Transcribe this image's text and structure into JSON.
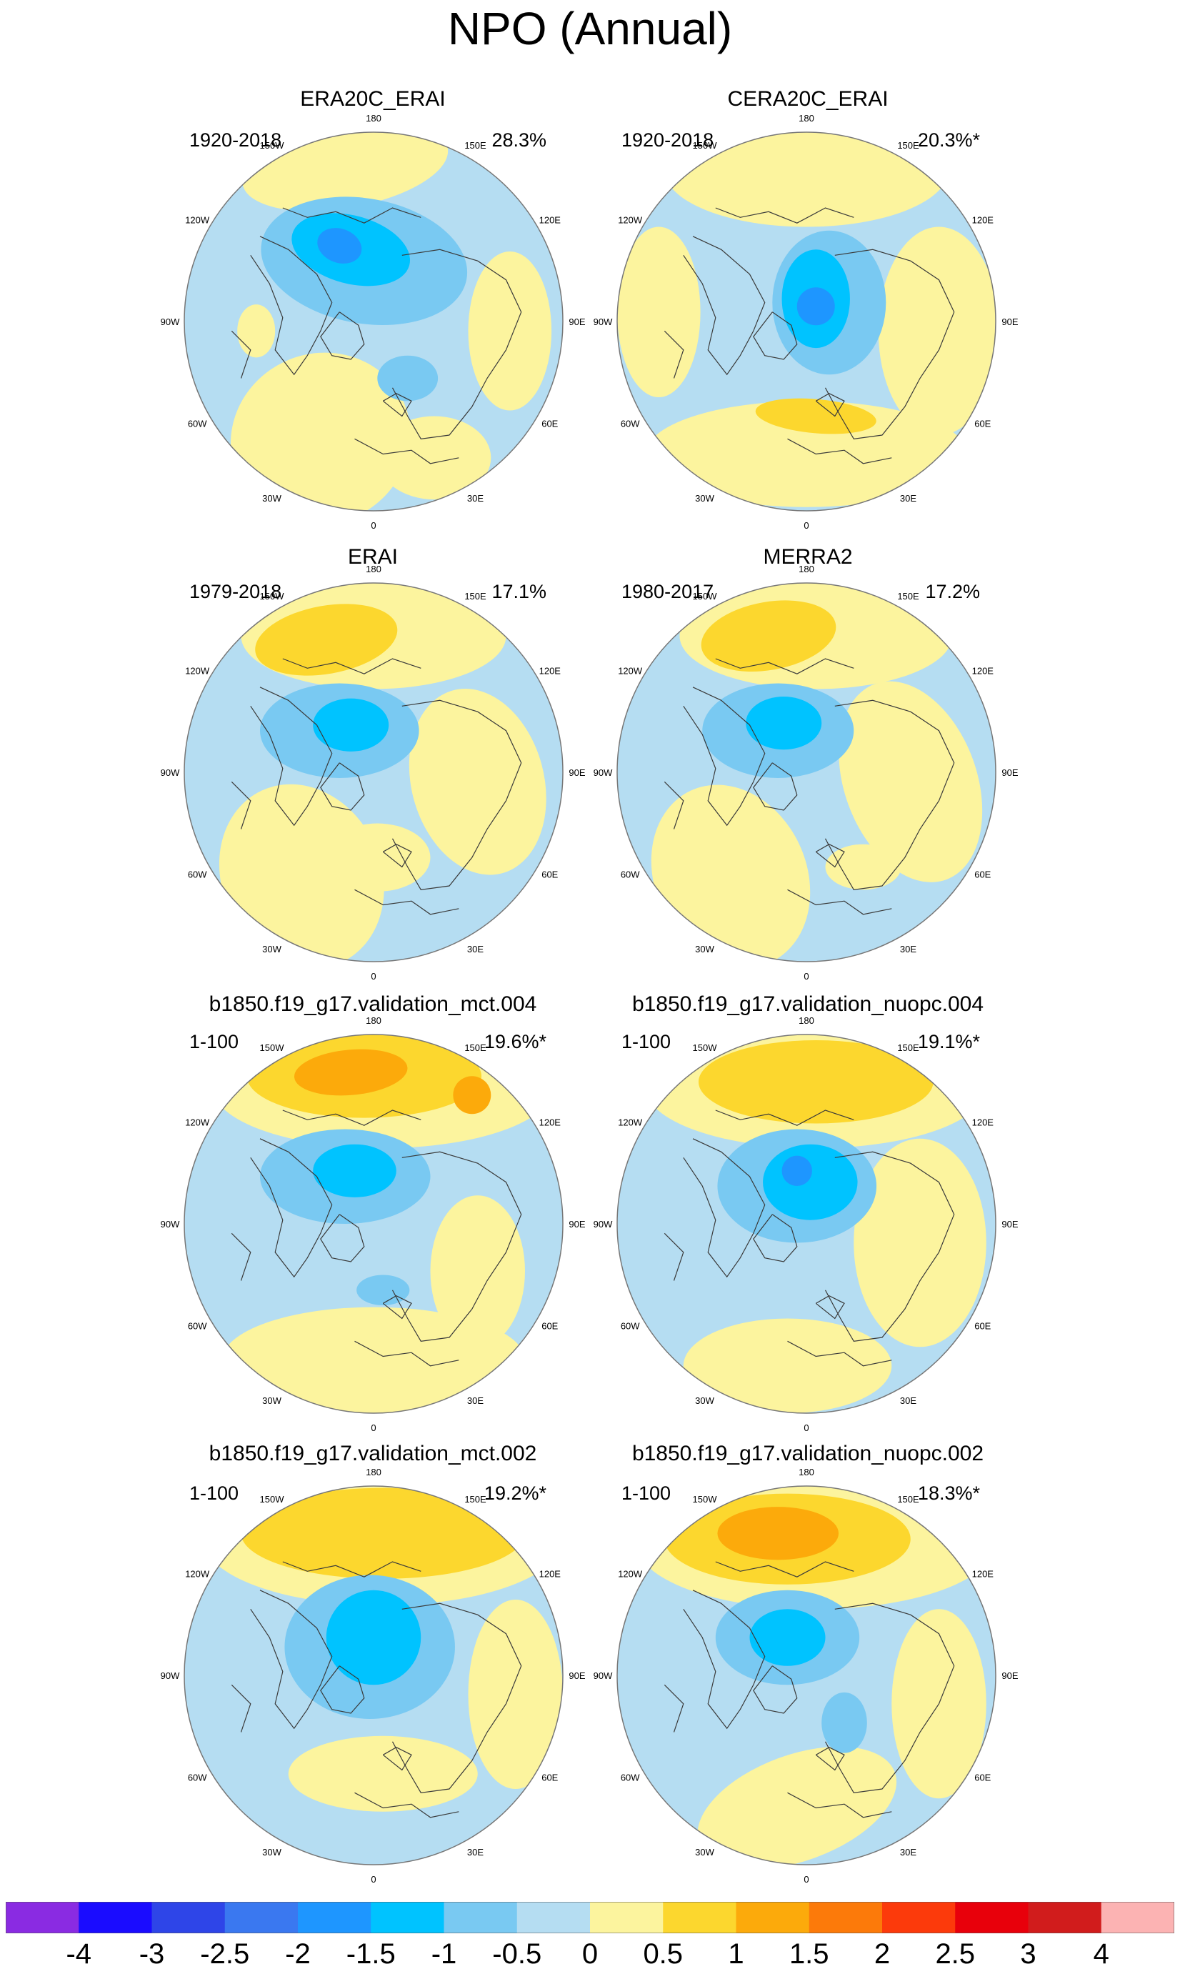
{
  "figure_title": "NPO (Annual)",
  "panels": [
    {
      "title": "ERA20C_ERAI",
      "period": "1920-2018",
      "pct": "28.3%"
    },
    {
      "title": "CERA20C_ERAI",
      "period": "1920-2018",
      "pct": "20.3%*"
    },
    {
      "title": "ERAI",
      "period": "1979-2018",
      "pct": "17.1%"
    },
    {
      "title": "MERRA2",
      "period": "1980-2017",
      "pct": "17.2%"
    },
    {
      "title": "b1850.f19_g17.validation_mct.004",
      "period": "1-100",
      "pct": "19.6%*"
    },
    {
      "title": "b1850.f19_g17.validation_nuopc.004",
      "period": "1-100",
      "pct": "19.1%*"
    },
    {
      "title": "b1850.f19_g17.validation_mct.002",
      "period": "1-100",
      "pct": "19.2%*"
    },
    {
      "title": "b1850.f19_g17.validation_nuopc.002",
      "period": "1-100",
      "pct": "18.3%*"
    }
  ],
  "lon_labels": [
    "180",
    "150E",
    "120E",
    "90E",
    "60E",
    "30E",
    "0",
    "30W",
    "60W",
    "90W",
    "120W",
    "150W"
  ],
  "colorbar": {
    "colors": [
      "#8a2be2",
      "#1a0cff",
      "#2e45e8",
      "#3a78f0",
      "#1e96ff",
      "#00c3ff",
      "#79c9f2",
      "#b5ddf2",
      "#fcf49e",
      "#fcd72e",
      "#fcaa0b",
      "#fc7a0a",
      "#fc3a0b",
      "#e8000b",
      "#d11c1c",
      "#fcb3b3"
    ],
    "labels": [
      "-4",
      "-3",
      "-2.5",
      "-2",
      "-1.5",
      "-1",
      "-0.5",
      "0",
      "0.5",
      "1",
      "1.5",
      "2",
      "2.5",
      "3",
      "4"
    ]
  },
  "map_colors": {
    "ocean_neg_light": "#b5ddf2",
    "neg_mid": "#79c9f2",
    "neg_strong": "#00c3ff",
    "neg_core": "#1e96ff",
    "pos_light": "#fcf49e",
    "pos_mid": "#fcd72e",
    "pos_strong": "#fcaa0b",
    "coast": "#3a3a3a",
    "rim": "#777777"
  }
}
